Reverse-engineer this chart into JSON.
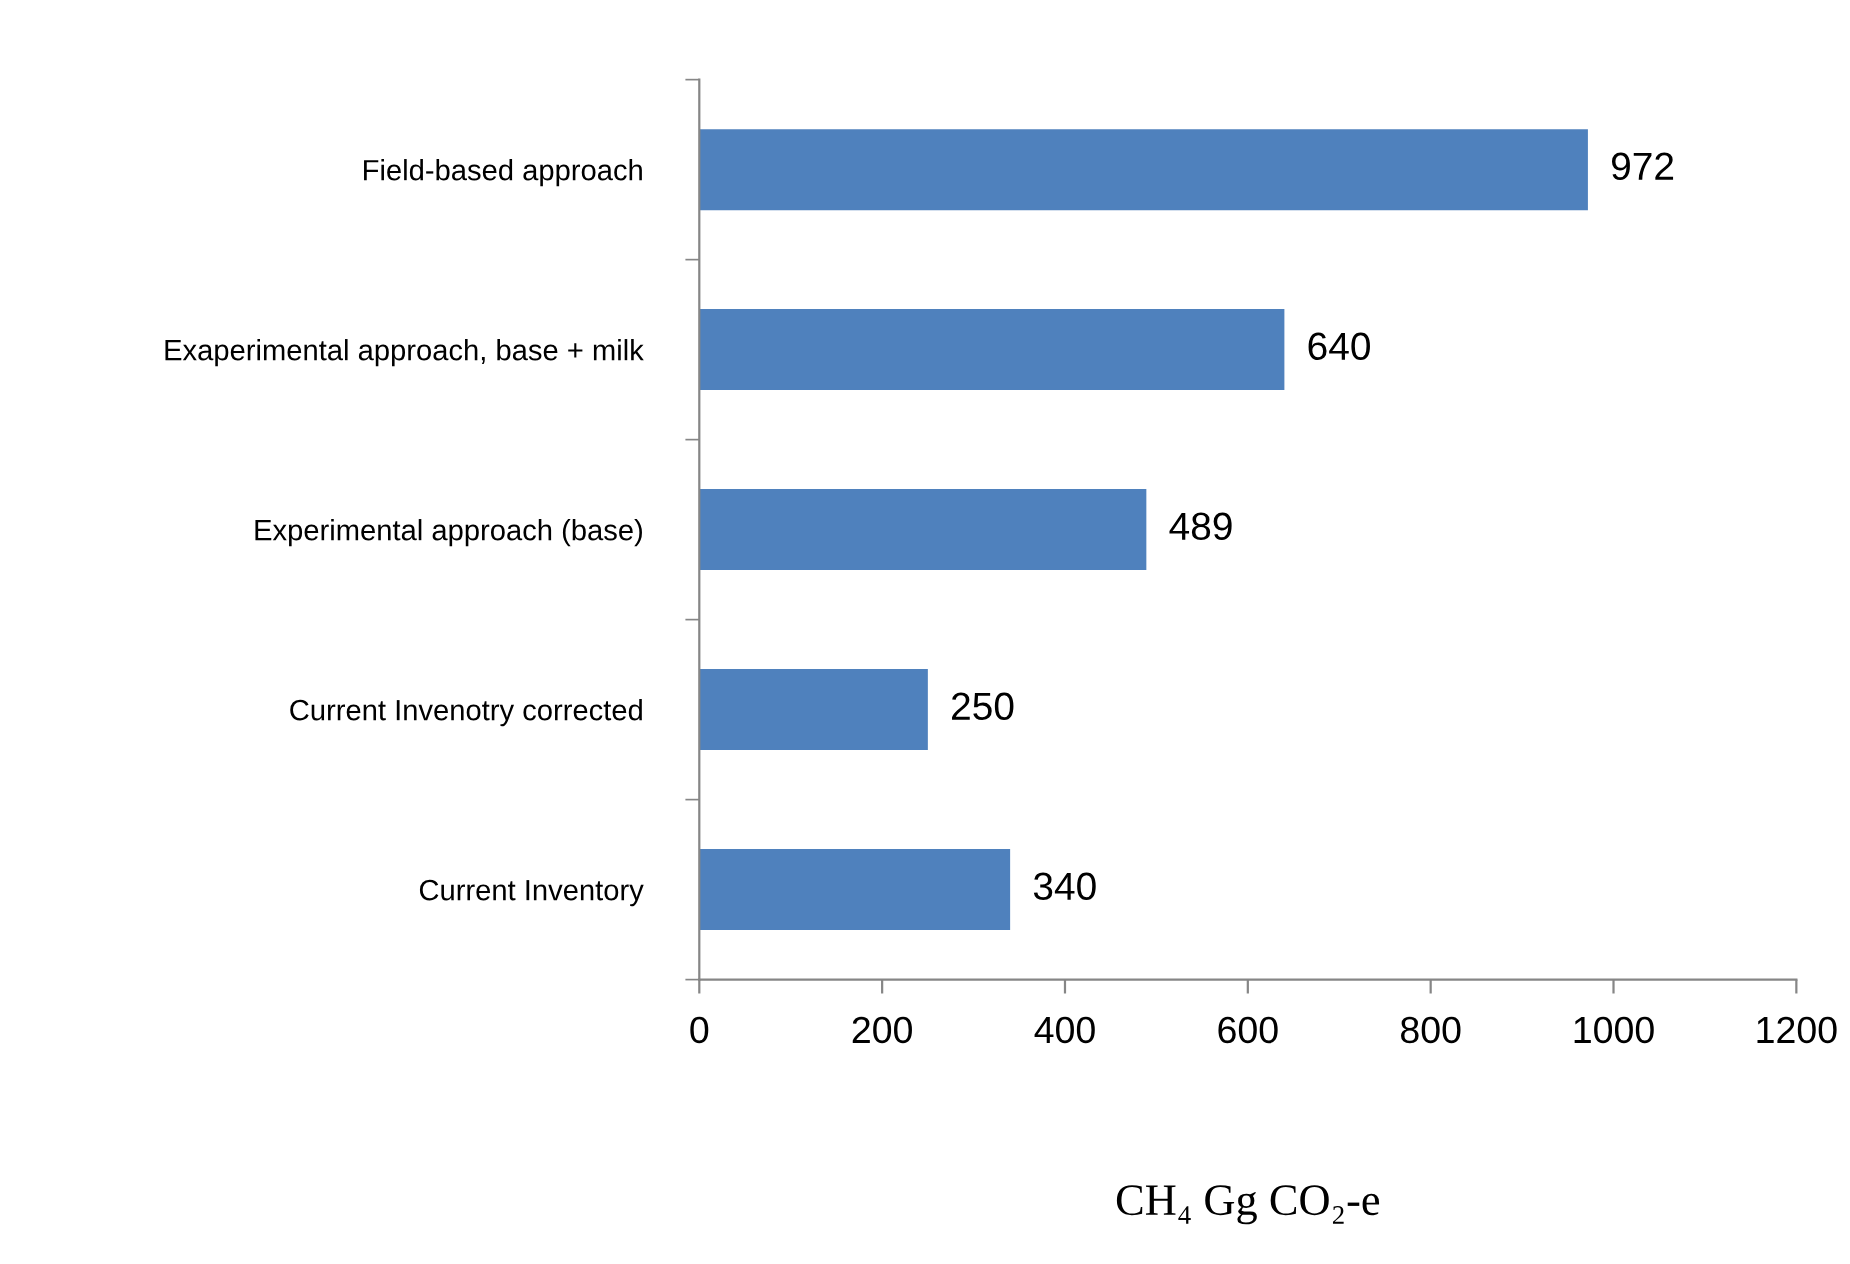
{
  "chart_data": {
    "type": "bar",
    "orientation": "horizontal",
    "categories": [
      "Field-based approach",
      "Exaperimental approach, base + milk",
      "Experimental approach (base)",
      "Current Invenotry corrected",
      "Current Inventory"
    ],
    "values": [
      972,
      640,
      489,
      250,
      340
    ],
    "color": "#4f81bd",
    "xlim": [
      0,
      1200
    ],
    "xticks": [
      0,
      200,
      400,
      600,
      800,
      1000,
      1200
    ],
    "xlabel": "CH₄ Gg CO₂-e",
    "data_labels": true,
    "grid": false,
    "legend": false
  }
}
